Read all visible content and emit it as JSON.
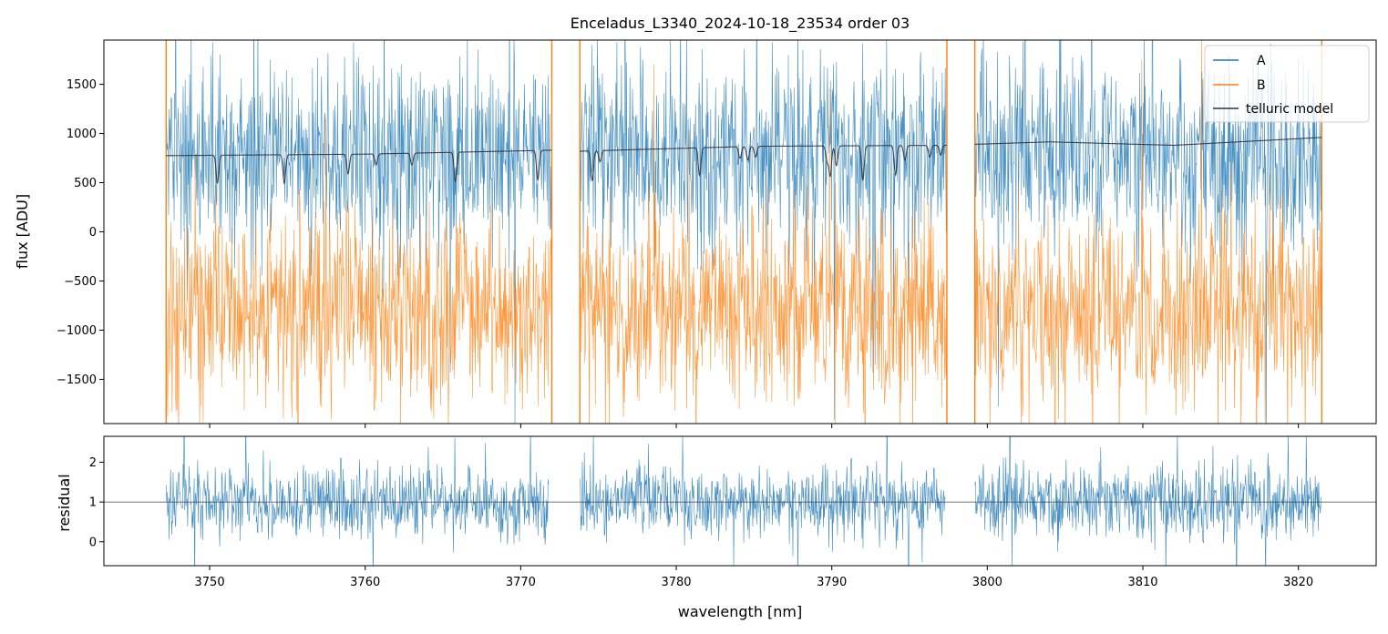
{
  "chart_data": [
    {
      "type": "line",
      "panel": "top",
      "title": "Enceladus_L3340_2024-10-18_23534  order 03",
      "xlabel": "",
      "ylabel": "flux [ADU]",
      "xlim": [
        3743.2,
        3825.0
      ],
      "ylim": [
        -1950,
        1950
      ],
      "y_ticks": [
        -1500,
        -1000,
        -500,
        0,
        500,
        1000,
        1500
      ],
      "y_tick_labels": [
        "−1500",
        "−1000",
        "−500",
        "0",
        "500",
        "1000",
        "1500"
      ],
      "x_ticks": [
        3750,
        3760,
        3770,
        3780,
        3790,
        3800,
        3810,
        3820
      ],
      "x_tick_labels_visible": false,
      "segments": [
        [
          3747.2,
          3772.0
        ],
        [
          3773.8,
          3797.4
        ],
        [
          3799.2,
          3821.5
        ]
      ],
      "legend": {
        "placement": "top-right",
        "entries": [
          "A",
          "B",
          "telluric model"
        ]
      },
      "series": [
        {
          "name": "A",
          "color": "#1f77b4",
          "mean": 800,
          "noise_sd": 480,
          "description": "noisy flux, mostly between 200 and 1950"
        },
        {
          "name": "B",
          "color": "#ff7f0e",
          "mean": -800,
          "noise_sd": 480,
          "description": "noisy flux, mostly between -1950 and 400"
        },
        {
          "name": "telluric model",
          "color": "#333333",
          "baseline": [
            [
              3747.2,
              775
            ],
            [
              3760,
              790
            ],
            [
              3772,
              830
            ],
            [
              3773.8,
              820
            ],
            [
              3785,
              870
            ],
            [
              3797.4,
              880
            ],
            [
              3799.2,
              890
            ],
            [
              3804,
              915
            ],
            [
              3812,
              880
            ],
            [
              3821.5,
              960
            ]
          ],
          "absorption_lines": [
            [
              3750.5,
              280
            ],
            [
              3754.8,
              290
            ],
            [
              3758.9,
              200
            ],
            [
              3760.7,
              110
            ],
            [
              3763.0,
              120
            ],
            [
              3765.8,
              300
            ],
            [
              3771.1,
              300
            ],
            [
              3774.6,
              300
            ],
            [
              3775.1,
              110
            ],
            [
              3781.5,
              280
            ],
            [
              3784.1,
              120
            ],
            [
              3784.6,
              140
            ],
            [
              3785.1,
              110
            ],
            [
              3789.7,
              150
            ],
            [
              3789.9,
              300
            ],
            [
              3790.3,
              200
            ],
            [
              3792.0,
              350
            ],
            [
              3794.1,
              300
            ],
            [
              3794.7,
              150
            ],
            [
              3796.3,
              120
            ],
            [
              3797.0,
              100
            ]
          ]
        }
      ]
    },
    {
      "type": "line",
      "panel": "bottom",
      "title": "",
      "xlabel": "wavelength [nm]",
      "ylabel": "residual",
      "xlim": [
        3743.2,
        3825.0
      ],
      "ylim": [
        -0.6,
        2.65
      ],
      "y_ticks": [
        0,
        1,
        2
      ],
      "y_tick_labels": [
        "0",
        "1",
        "2"
      ],
      "x_ticks": [
        3750,
        3760,
        3770,
        3780,
        3790,
        3800,
        3810,
        3820
      ],
      "x_tick_labels": [
        "3750",
        "3760",
        "3770",
        "3780",
        "3790",
        "3800",
        "3810",
        "3820"
      ],
      "reference_line": 1,
      "segments": [
        [
          3747.2,
          3771.8
        ],
        [
          3773.8,
          3797.3
        ],
        [
          3799.2,
          3821.5
        ]
      ],
      "series": [
        {
          "name": "residual",
          "color": "#1f77b4",
          "mean": 1.0,
          "noise_sd": 0.45
        }
      ]
    }
  ]
}
